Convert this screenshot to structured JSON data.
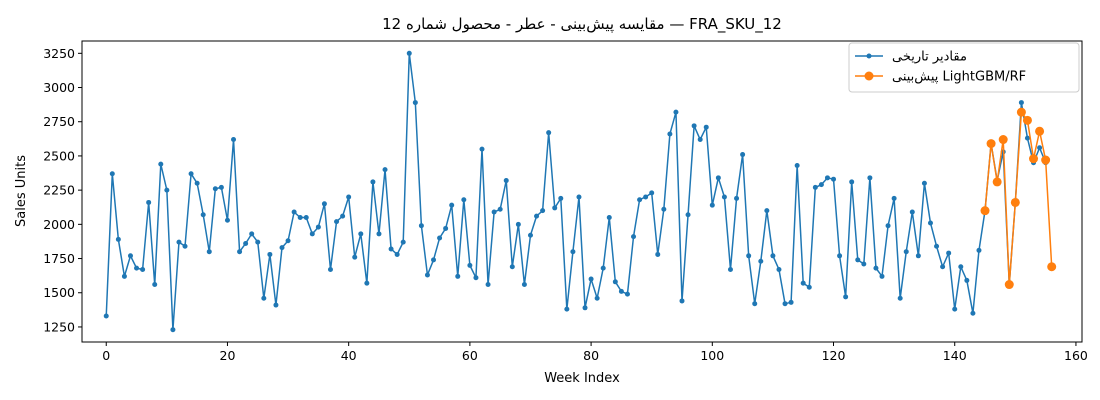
{
  "chart_data": {
    "type": "line",
    "title": "مقایسه پیش‌بینی - عطر - محصول شماره 12 — FRA_SKU_12",
    "xlabel": "Week Index",
    "ylabel": "Sales Units",
    "xlim": [
      -4,
      161
    ],
    "ylim": [
      1140,
      3340
    ],
    "x_ticks": [
      0,
      20,
      40,
      60,
      80,
      100,
      120,
      140,
      160
    ],
    "y_ticks": [
      1250,
      1500,
      1750,
      2000,
      2250,
      2500,
      2750,
      3000,
      3250
    ],
    "grid": false,
    "legend_position": "top-right",
    "series": [
      {
        "name": "مقادیر تاریخی",
        "color": "#1f77b4",
        "marker": "small-dot",
        "x_start": 0,
        "values": [
          1330,
          2370,
          1890,
          1620,
          1770,
          1680,
          1670,
          2160,
          1560,
          2440,
          2250,
          1230,
          1870,
          1840,
          2370,
          2300,
          2070,
          1800,
          2260,
          2270,
          2030,
          2620,
          1800,
          1860,
          1930,
          1870,
          1460,
          1780,
          1410,
          1830,
          1880,
          2090,
          2050,
          2050,
          1930,
          1980,
          2150,
          1670,
          2020,
          2060,
          2200,
          1760,
          1930,
          1570,
          2310,
          1930,
          2400,
          1820,
          1780,
          1870,
          3250,
          2890,
          1990,
          1630,
          1740,
          1900,
          1970,
          2140,
          1620,
          2180,
          1700,
          1610,
          2550,
          1560,
          2090,
          2110,
          2320,
          1690,
          2000,
          1560,
          1920,
          2060,
          2100,
          2670,
          2120,
          2190,
          1380,
          1800,
          2200,
          1390,
          1600,
          1460,
          1680,
          2050,
          1580,
          1510,
          1490,
          1910,
          2180,
          2200,
          2230,
          1780,
          2110,
          2660,
          2820,
          1440,
          2070,
          2720,
          2620,
          2710,
          2140,
          2340,
          2200,
          1670,
          2190,
          2510,
          1770,
          1420,
          1730,
          2100,
          1770,
          1670,
          1420,
          1430,
          2430,
          1570,
          1540,
          2270,
          2290,
          2340,
          2330,
          1770,
          1470,
          2310,
          1740,
          1710,
          2340,
          1680,
          1620,
          1990,
          2190,
          1460,
          1800,
          2090,
          1770,
          2300,
          2010,
          1840,
          1690,
          1790,
          1380,
          1690,
          1590,
          1350,
          1810,
          2100,
          2590,
          2320,
          2530,
          1560,
          2160,
          2890,
          2630,
          2450,
          2560,
          2450
        ]
      },
      {
        "name": "پیش‌بینی LightGBM/RF",
        "color": "#ff7f0e",
        "marker": "large-dot",
        "x": [
          145,
          146,
          147,
          148,
          149,
          150,
          151,
          152,
          153,
          154,
          155,
          156
        ],
        "values": [
          2100,
          2590,
          2310,
          2620,
          1560,
          2160,
          2820,
          2760,
          2480,
          2680,
          2470,
          1690
        ]
      }
    ]
  }
}
